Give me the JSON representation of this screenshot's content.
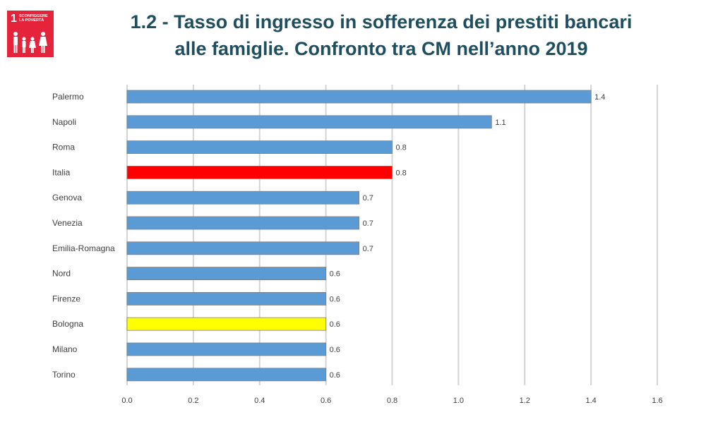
{
  "badge": {
    "number": "1",
    "text": "SCONFIGGERE LA POVERTÀ",
    "color": "#e5243b",
    "icon": "family-icon"
  },
  "header": {
    "title_line1": "1.2 - Tasso di ingresso in sofferenza dei prestiti bancari",
    "title_line2": "alle famiglie. Confronto tra CM nell’anno 2019"
  },
  "chart_data": {
    "type": "bar",
    "orientation": "horizontal",
    "categories": [
      "Palermo",
      "Napoli",
      "Roma",
      "Italia",
      "Genova",
      "Venezia",
      "Emilia-Romagna",
      "Nord",
      "Firenze",
      "Bologna",
      "Milano",
      "Torino"
    ],
    "values": [
      1.4,
      1.1,
      0.8,
      0.8,
      0.7,
      0.7,
      0.7,
      0.6,
      0.6,
      0.6,
      0.6,
      0.6
    ],
    "data_labels": [
      "1.4",
      "1.1",
      "0.8",
      "0.8",
      "0.7",
      "0.7",
      "0.7",
      "0.6",
      "0.6",
      "0.6",
      "0.6",
      "0.6"
    ],
    "colors": [
      "#5b9bd5",
      "#5b9bd5",
      "#5b9bd5",
      "#ff0000",
      "#5b9bd5",
      "#5b9bd5",
      "#5b9bd5",
      "#5b9bd5",
      "#5b9bd5",
      "#ffff00",
      "#5b9bd5",
      "#5b9bd5"
    ],
    "xlim": [
      0,
      1.6
    ],
    "x_ticks": [
      "0.0",
      "0.2",
      "0.4",
      "0.6",
      "0.8",
      "1.0",
      "1.2",
      "1.4",
      "1.6"
    ],
    "grid": true,
    "legend": "none",
    "title": "",
    "xlabel": "",
    "ylabel": ""
  }
}
